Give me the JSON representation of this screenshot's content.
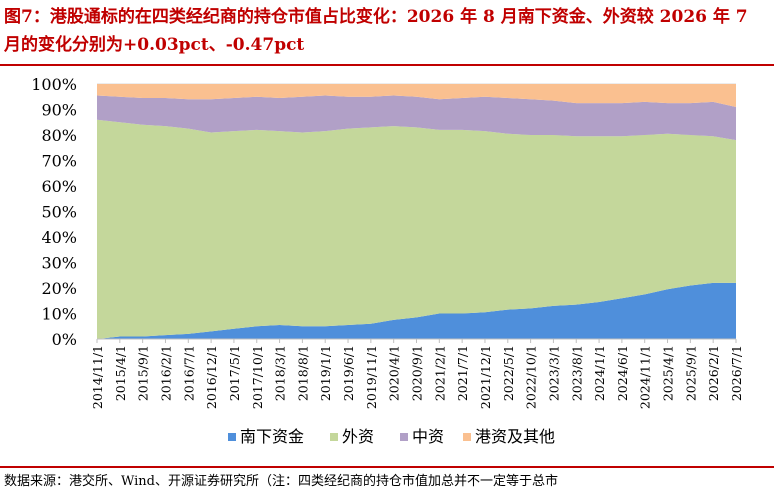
{
  "figure": {
    "title_prefix": "图7：",
    "title_text": "港股通标的在四类经纪商的持仓市值占比变化：2026 年 8 月南下资金、外资较 2026 年 7 月的变化分别为+0.03pct、-0.47pct",
    "source": "数据来源：港交所、Wind、开源证券研究所（注：四类经纪商的持仓市值加总并不一定等于总市"
  },
  "colors": {
    "title": "#c00000",
    "rule": "#c00000",
    "southbound": "#4f8fdb",
    "foreign": "#c4d79b",
    "chinese": "#b1a0c7",
    "hk_other": "#fac090"
  },
  "chart_data": {
    "type": "area",
    "stacked": true,
    "x": [
      "2014/11/1",
      "2015/4/1",
      "2015/9/1",
      "2016/2/1",
      "2016/7/1",
      "2016/12/1",
      "2017/5/1",
      "2017/10/1",
      "2018/3/1",
      "2018/8/1",
      "2019/1/1",
      "2019/6/1",
      "2019/11/1",
      "2020/4/1",
      "2020/9/1",
      "2021/2/1",
      "2021/7/1",
      "2021/12/1",
      "2022/5/1",
      "2022/10/1",
      "2023/3/1",
      "2023/8/1",
      "2024/1/1",
      "2024/6/1",
      "2024/11/1",
      "2025/4/1",
      "2025/9/1",
      "2026/2/1",
      "2026/7/1"
    ],
    "series": [
      {
        "name": "南下资金",
        "values": [
          0,
          1,
          1,
          1.5,
          2,
          3,
          4,
          5,
          5.5,
          5,
          5,
          5.5,
          6,
          7.5,
          8.5,
          10,
          10,
          10.5,
          11.5,
          12,
          13,
          13.5,
          14.5,
          16,
          17.5,
          19.5,
          21,
          22,
          22
        ]
      },
      {
        "name": "外资",
        "values": [
          86,
          84,
          83,
          82,
          80.5,
          78,
          77.5,
          77,
          76,
          76,
          76.5,
          77,
          77,
          76,
          74.5,
          72,
          72,
          71,
          69,
          68,
          67,
          66,
          65,
          63.5,
          62.5,
          61,
          59,
          57.5,
          56
        ]
      },
      {
        "name": "中资",
        "values": [
          9.5,
          10,
          10.5,
          11,
          11.5,
          13,
          13,
          13,
          13,
          14,
          14,
          12.5,
          12,
          12,
          12,
          12,
          12.5,
          13.5,
          14,
          14,
          13.5,
          13,
          13,
          13,
          13,
          12,
          12.5,
          13.5,
          13
        ]
      },
      {
        "name": "港资及其他",
        "values": [
          4.5,
          5,
          5.5,
          5.5,
          6,
          6,
          5.5,
          5,
          5.5,
          5,
          4.5,
          5,
          5,
          4.5,
          5,
          6,
          5.5,
          5,
          5.5,
          6,
          6.5,
          7.5,
          7.5,
          7.5,
          7,
          7.5,
          7.5,
          7,
          9
        ]
      }
    ],
    "y_tick_labels": [
      "0%",
      "10%",
      "20%",
      "30%",
      "40%",
      "50%",
      "60%",
      "70%",
      "80%",
      "90%",
      "100%"
    ],
    "ylim": [
      0,
      100
    ],
    "legend_position": "bottom",
    "grid": true
  }
}
